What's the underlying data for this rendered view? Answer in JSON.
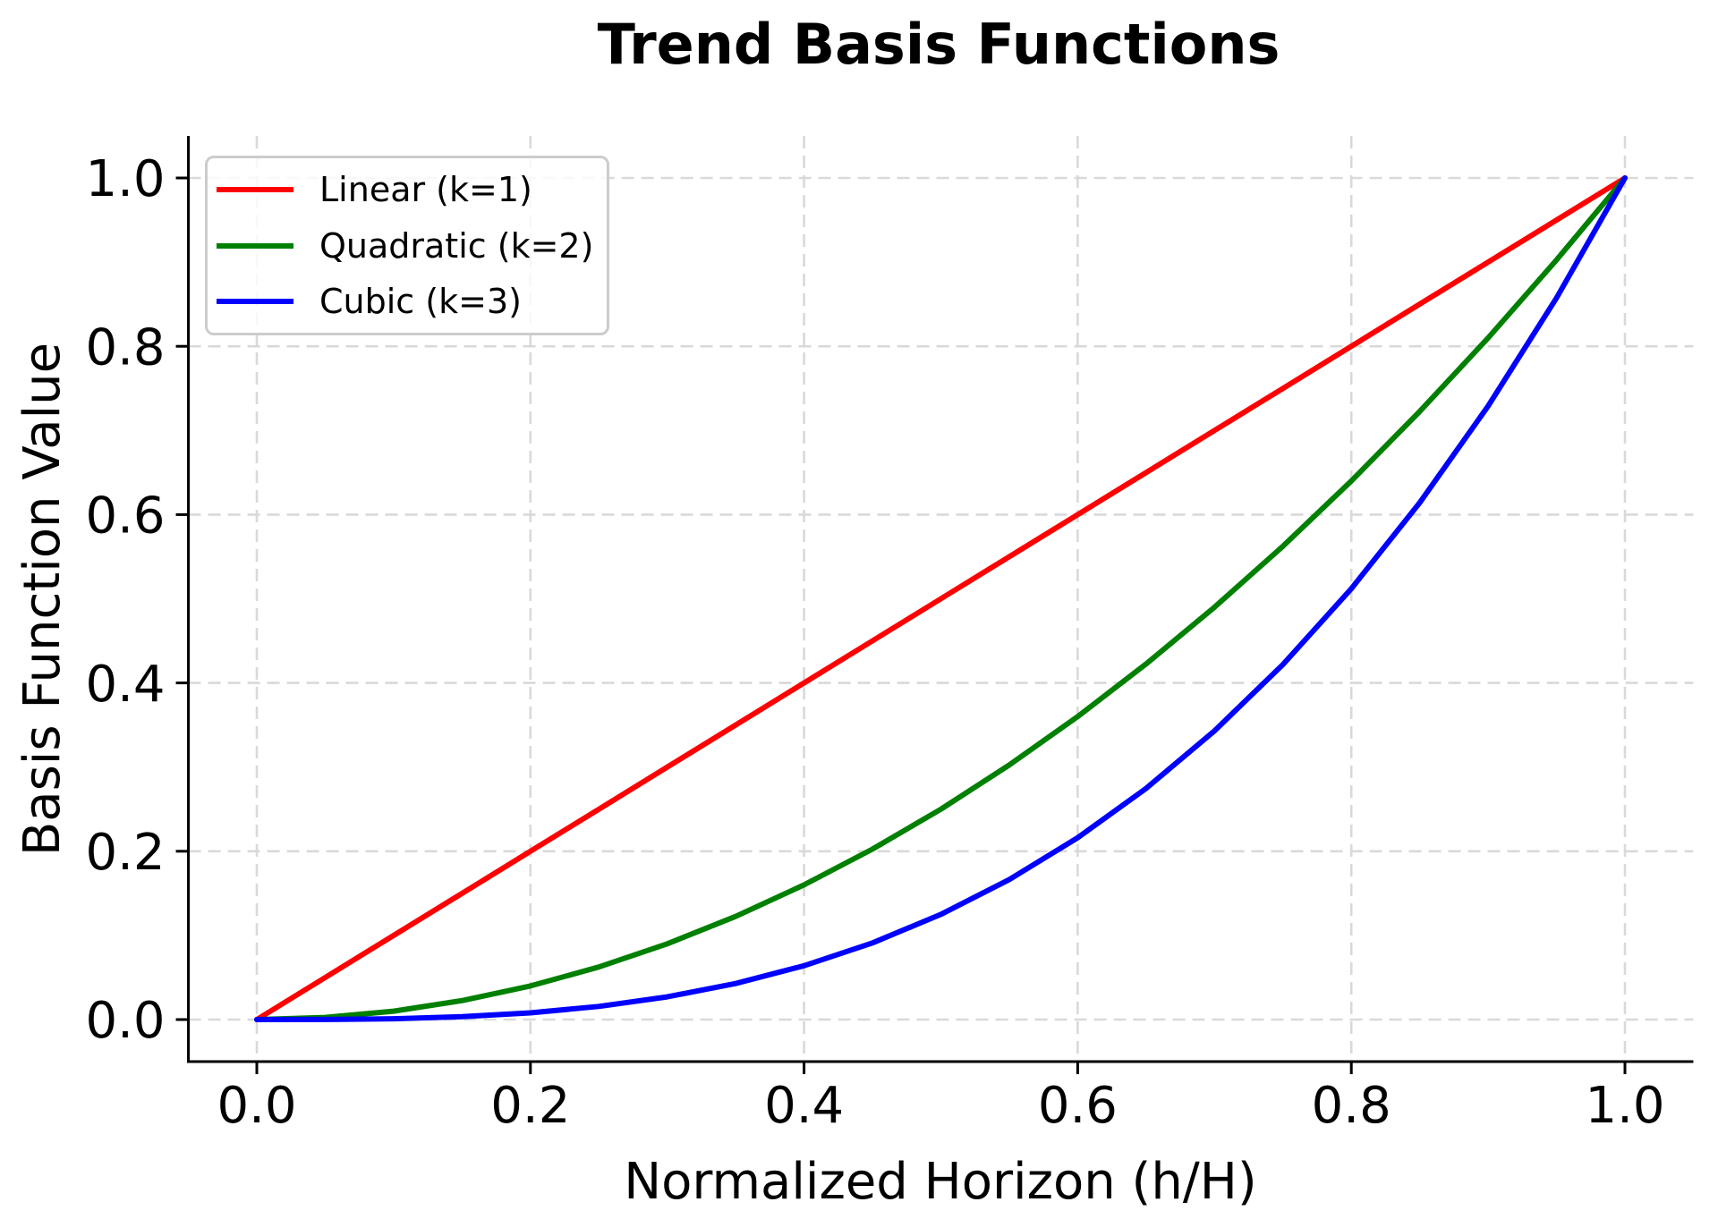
{
  "chart_data": {
    "type": "line",
    "title": "Trend Basis Functions",
    "xlabel": "Normalized Horizon (h/H)",
    "ylabel": "Basis Function Value",
    "xlim": [
      -0.05,
      1.05
    ],
    "ylim": [
      -0.05,
      1.05
    ],
    "xtick_values": [
      0.0,
      0.2,
      0.4,
      0.6,
      0.8,
      1.0
    ],
    "xtick_labels": [
      "0.0",
      "0.2",
      "0.4",
      "0.6",
      "0.8",
      "1.0"
    ],
    "ytick_values": [
      0.0,
      0.2,
      0.4,
      0.6,
      0.8,
      1.0
    ],
    "ytick_labels": [
      "0.0",
      "0.2",
      "0.4",
      "0.6",
      "0.8",
      "1.0"
    ],
    "grid": {
      "show": true,
      "linestyle": "dashed",
      "color": "#d9d9d9"
    },
    "axes": {
      "spine_color": "#000000",
      "text_color": "#000000",
      "background": "#ffffff"
    },
    "legend": {
      "position": "upper left",
      "border_color": "#cccccc",
      "background": "rgba(255,255,255,0.8)"
    },
    "x": [
      0.0,
      0.05,
      0.1,
      0.15,
      0.2,
      0.25,
      0.3,
      0.35,
      0.4,
      0.45,
      0.5,
      0.55,
      0.6,
      0.65,
      0.7,
      0.75,
      0.8,
      0.85,
      0.9,
      0.95,
      1.0
    ],
    "series": [
      {
        "name": "Linear (k=1)",
        "color": "#ff0000",
        "values": [
          0.0,
          0.05,
          0.1,
          0.15,
          0.2,
          0.25,
          0.3,
          0.35,
          0.4,
          0.45,
          0.5,
          0.55,
          0.6,
          0.65,
          0.7,
          0.75,
          0.8,
          0.85,
          0.9,
          0.95,
          1.0
        ]
      },
      {
        "name": "Quadratic (k=2)",
        "color": "#008000",
        "values": [
          0.0,
          0.0025,
          0.01,
          0.0225,
          0.04,
          0.0625,
          0.09,
          0.1225,
          0.16,
          0.2025,
          0.25,
          0.3025,
          0.36,
          0.4225,
          0.49,
          0.5625,
          0.64,
          0.7225,
          0.81,
          0.9025,
          1.0
        ]
      },
      {
        "name": "Cubic (k=3)",
        "color": "#0000ff",
        "values": [
          0.0,
          0.000125,
          0.001,
          0.003375,
          0.008,
          0.015625,
          0.027,
          0.042875,
          0.064,
          0.091125,
          0.125,
          0.166375,
          0.216,
          0.274625,
          0.343,
          0.421875,
          0.512,
          0.614125,
          0.729,
          0.857375,
          1.0
        ]
      }
    ]
  }
}
